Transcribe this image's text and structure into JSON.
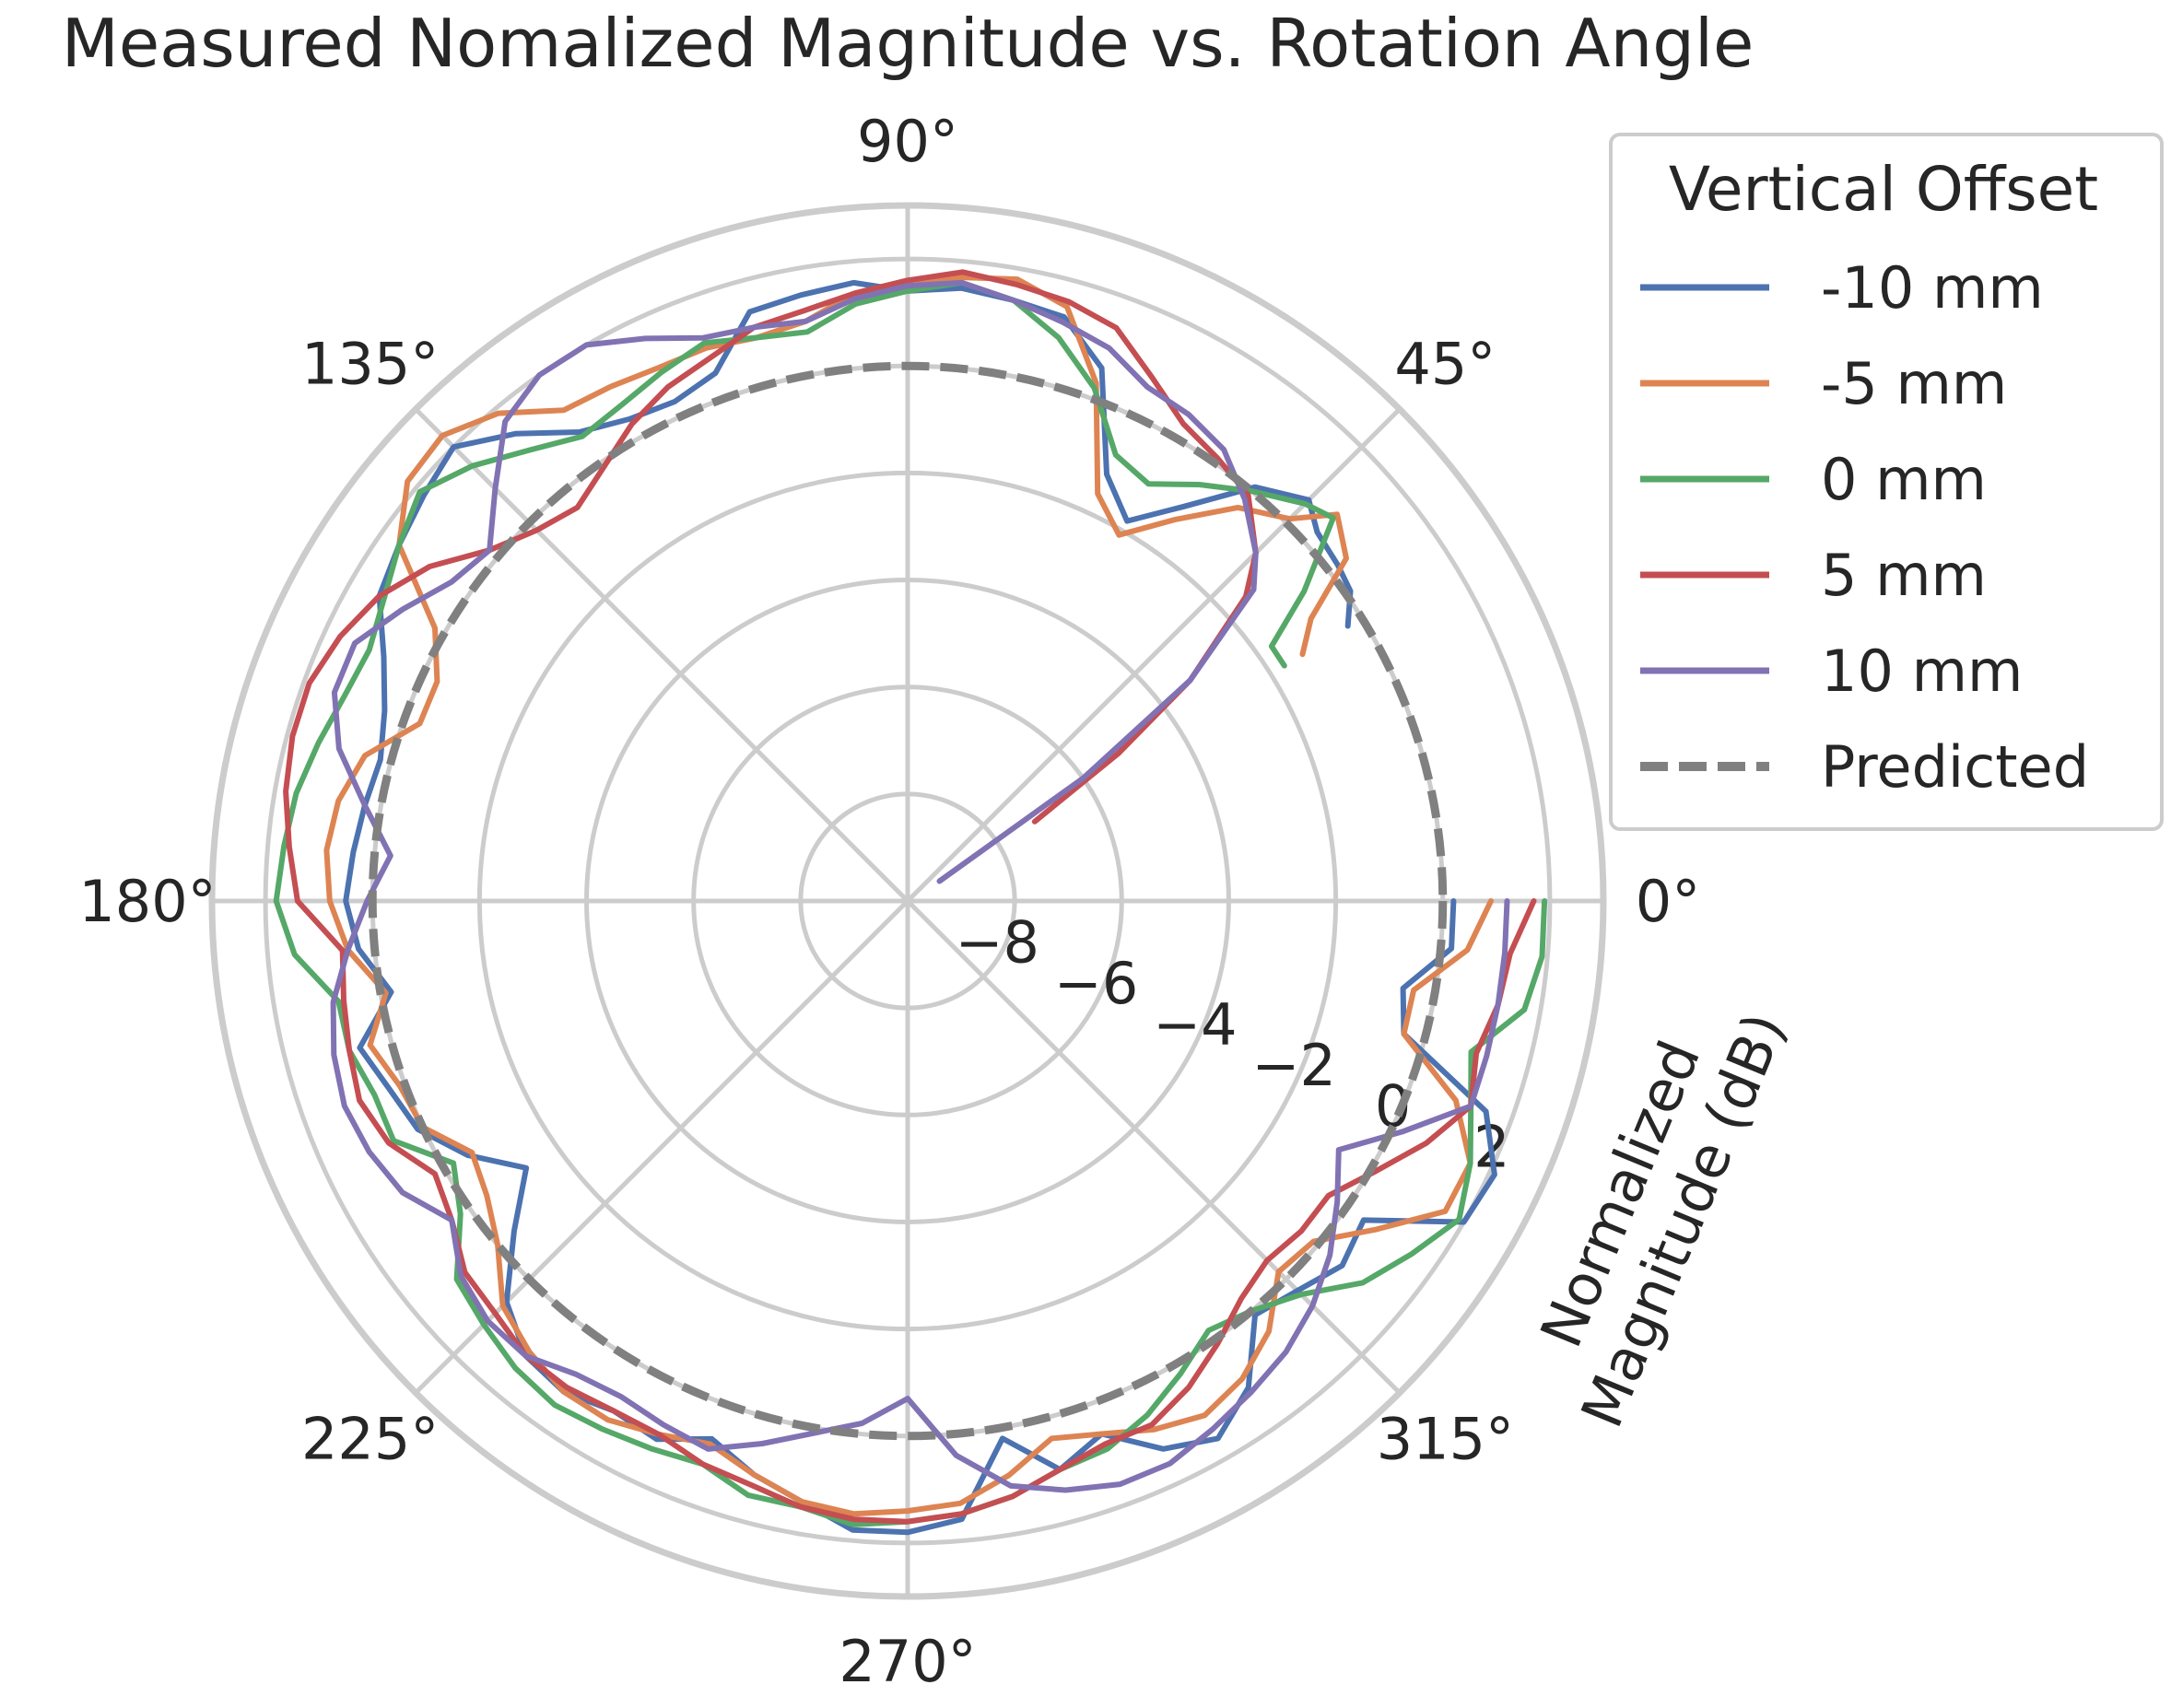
{
  "chart_data": {
    "type": "line",
    "projection": "polar",
    "title": "Measured Nomalized Magnitude vs. Rotation Angle",
    "ylabel": "Normalized\nMagnitude (dB)",
    "rlim": [
      -10,
      3
    ],
    "rticks": [
      -8,
      -6,
      -4,
      -2,
      0,
      2
    ],
    "rtick_labels": [
      "−8",
      "−6",
      "−4",
      "−2",
      "0",
      "2"
    ],
    "theta_ticks_deg": [
      0,
      45,
      90,
      135,
      180,
      225,
      270,
      315
    ],
    "theta_tick_labels": [
      "0°",
      "45°",
      "90°",
      "135°",
      "180°",
      "225°",
      "270°",
      "315°"
    ],
    "grid": true,
    "legend": {
      "title": "Vertical Offset",
      "placement": "upper right, outside the plot"
    },
    "x_unit": "degrees",
    "y_unit": "dB",
    "series": [
      {
        "name": "-10 mm",
        "color": "#4c72b0",
        "x": [
          32,
          35,
          38,
          42,
          45,
          50,
          55,
          60,
          65,
          70,
          75,
          80,
          85,
          90,
          95,
          100,
          105,
          110,
          115,
          120,
          125,
          130,
          135,
          140,
          145,
          150,
          155,
          160,
          165,
          170,
          175,
          180,
          185,
          190,
          195,
          200,
          205,
          210,
          215,
          220,
          225,
          230,
          235,
          240,
          245,
          250,
          255,
          260,
          265,
          270,
          275,
          280,
          285,
          290,
          295,
          300,
          305,
          310,
          315,
          320,
          325,
          330,
          335,
          340,
          345,
          350,
          355,
          0
        ],
        "y": [
          -0.3,
          0.1,
          0.2,
          0.3,
          0.6,
          0.1,
          -1.0,
          -1.8,
          -1.2,
          0.6,
          1.3,
          1.4,
          1.5,
          1.4,
          1.6,
          1.5,
          1.4,
          0.5,
          0.3,
          0.4,
          0.7,
          1.4,
          2.0,
          1.8,
          1.6,
          1.4,
          0.8,
          0.4,
          0.2,
          0.3,
          0.4,
          0.5,
          0.3,
          -0.2,
          0.6,
          0.3,
          0.1,
          -0.5,
          -1.3,
          -0.4,
          0.6,
          1.1,
          1.2,
          1.0,
          1.1,
          0.7,
          1.1,
          1.4,
          1.8,
          1.8,
          1.6,
          0.2,
          1.0,
          0.6,
          1.3,
          1.6,
          1.1,
          0.1,
          0.3,
          0.6,
          0.4,
          2.0,
          2.1,
          1.5,
          -0.4,
          -0.6,
          0.2,
          0.2
        ]
      },
      {
        "name": "-5 mm",
        "color": "#dd8452",
        "x": [
          32,
          35,
          38,
          42,
          45,
          50,
          55,
          60,
          65,
          70,
          75,
          80,
          85,
          90,
          95,
          100,
          105,
          110,
          115,
          120,
          125,
          130,
          135,
          140,
          145,
          150,
          155,
          160,
          165,
          170,
          175,
          180,
          185,
          190,
          195,
          200,
          205,
          210,
          215,
          220,
          225,
          230,
          235,
          240,
          245,
          250,
          255,
          260,
          265,
          270,
          275,
          280,
          285,
          290,
          295,
          300,
          305,
          310,
          315,
          320,
          325,
          330,
          335,
          340,
          345,
          350,
          355,
          0
        ],
        "y": [
          -1.3,
          -0.8,
          0.4,
          0.8,
          0.1,
          -0.4,
          -1.3,
          -2.1,
          -1.6,
          0.3,
          1.5,
          1.8,
          1.7,
          1.6,
          1.4,
          1.0,
          0.9,
          1.0,
          1.0,
          1.1,
          1.2,
          1.9,
          2.3,
          2.2,
          1.6,
          0.2,
          -0.3,
          -0.3,
          0.5,
          0.8,
          0.9,
          0.8,
          0.5,
          -0.1,
          0.4,
          0.1,
          0.0,
          -0.6,
          -0.4,
          0.0,
          0.7,
          1.0,
          1.2,
          1.2,
          1.0,
          0.8,
          1.1,
          1.4,
          1.5,
          1.4,
          1.3,
          0.9,
          0.4,
          0.6,
          0.9,
          1.1,
          0.9,
          0.5,
          -0.2,
          -0.1,
          0.7,
          1.6,
          1.6,
          0.9,
          -0.4,
          -0.4,
          0.5,
          0.9
        ]
      },
      {
        "name": "0 mm",
        "color": "#55a868",
        "x": [
          32,
          35,
          38,
          42,
          45,
          50,
          55,
          60,
          65,
          70,
          75,
          80,
          85,
          90,
          95,
          100,
          105,
          110,
          115,
          120,
          125,
          130,
          135,
          140,
          145,
          150,
          155,
          160,
          165,
          170,
          175,
          180,
          185,
          190,
          195,
          200,
          205,
          210,
          215,
          220,
          225,
          230,
          235,
          240,
          245,
          250,
          255,
          260,
          265,
          270,
          275,
          280,
          285,
          290,
          295,
          300,
          305,
          310,
          315,
          320,
          325,
          330,
          335,
          340,
          345,
          350,
          355,
          0
        ],
        "y": [
          -1.7,
          -1.7,
          -0.6,
          0.7,
          0.5,
          0.0,
          -0.5,
          -1.0,
          -0.8,
          0.2,
          0.9,
          1.4,
          1.6,
          1.4,
          1.2,
          0.8,
          0.9,
          1.1,
          0.9,
          0.7,
          0.6,
          1.0,
          1.5,
          1.9,
          1.6,
          1.3,
          1.1,
          1.2,
          1.4,
          1.6,
          1.7,
          1.8,
          1.5,
          0.8,
          0.8,
          0.6,
          0.6,
          -0.2,
          0.2,
          1.0,
          1.2,
          1.4,
          1.5,
          1.4,
          1.3,
          1.2,
          1.5,
          1.5,
          1.7,
          1.6,
          1.5,
          1.3,
          1.0,
          0.9,
          0.6,
          0.2,
          -0.2,
          0.0,
          0.4,
          1.1,
          1.5,
          1.9,
          1.6,
          1.2,
          0.9,
          1.7,
          1.9,
          1.9
        ]
      },
      {
        "name": "5 mm",
        "color": "#c44e52",
        "x": [
          32,
          35,
          38,
          42,
          45,
          50,
          55,
          60,
          65,
          70,
          75,
          80,
          85,
          90,
          95,
          100,
          105,
          110,
          115,
          120,
          125,
          130,
          135,
          140,
          145,
          150,
          155,
          160,
          165,
          170,
          175,
          180,
          185,
          190,
          195,
          200,
          205,
          210,
          215,
          220,
          225,
          230,
          235,
          240,
          245,
          250,
          255,
          260,
          265,
          270,
          275,
          280,
          285,
          290,
          295,
          300,
          305,
          310,
          315,
          320,
          325,
          330,
          335,
          340,
          345,
          350,
          355,
          0
        ],
        "y": [
          -7.2,
          -5.2,
          -3.3,
          -1.5,
          -0.8,
          -0.1,
          0.1,
          0.3,
          0.8,
          1.4,
          1.6,
          1.7,
          1.8,
          1.6,
          1.4,
          1.2,
          1.1,
          0.8,
          0.6,
          0.3,
          -0.1,
          -0.4,
          -0.2,
          0.2,
          0.9,
          1.4,
          1.7,
          1.9,
          1.9,
          1.8,
          1.6,
          1.4,
          0.6,
          0.7,
          0.8,
          0.9,
          0.7,
          0.2,
          0.4,
          0.8,
          0.9,
          1.1,
          1.1,
          1.0,
          1.0,
          1.2,
          1.3,
          1.5,
          1.6,
          1.6,
          1.5,
          1.3,
          1.0,
          0.8,
          0.8,
          0.5,
          0.1,
          -0.3,
          -0.5,
          -0.4,
          -0.4,
          0.1,
          0.7,
          1.2,
          1.0,
          1.2,
          1.3,
          1.7
        ]
      },
      {
        "name": "10 mm",
        "color": "#8172b3",
        "x": [
          32,
          35,
          38,
          42,
          45,
          50,
          55,
          60,
          65,
          70,
          75,
          80,
          85,
          90,
          95,
          100,
          105,
          110,
          115,
          120,
          125,
          130,
          135,
          140,
          145,
          150,
          155,
          160,
          165,
          170,
          175,
          180,
          185,
          190,
          195,
          200,
          205,
          210,
          215,
          220,
          225,
          230,
          235,
          240,
          245,
          250,
          255,
          260,
          265,
          270,
          275,
          280,
          285,
          290,
          295,
          300,
          305,
          310,
          315,
          320,
          325,
          330,
          335,
          340,
          345,
          350,
          355,
          0
        ],
        "y": [
          -9.3,
          -6.0,
          -3.3,
          -1.3,
          -0.8,
          -0.2,
          0.3,
          0.5,
          0.6,
          1.0,
          1.2,
          1.4,
          1.6,
          1.5,
          1.3,
          1.0,
          1.1,
          1.2,
          1.6,
          2.0,
          2.0,
          1.7,
          0.9,
          0.2,
          0.4,
          0.9,
          1.4,
          1.4,
          1.0,
          0.3,
          -0.3,
          0.1,
          0.5,
          0.9,
          1.1,
          1.2,
          1.1,
          0.9,
          0.4,
          0.9,
          1.1,
          1.1,
          0.8,
          0.7,
          0.8,
          0.9,
          0.5,
          0.1,
          -0.2,
          -0.7,
          0.4,
          1.1,
          1.4,
          1.6,
          1.6,
          1.4,
          1.2,
          1.0,
          0.7,
          0.3,
          -0.2,
          -0.7,
          0.2,
          1.2,
          1.2,
          1.2,
          1.2,
          1.2
        ]
      },
      {
        "name": "Predicted",
        "color": "#808080",
        "dashed": true,
        "x": [
          0,
          360
        ],
        "y": [
          0,
          0
        ]
      }
    ]
  }
}
